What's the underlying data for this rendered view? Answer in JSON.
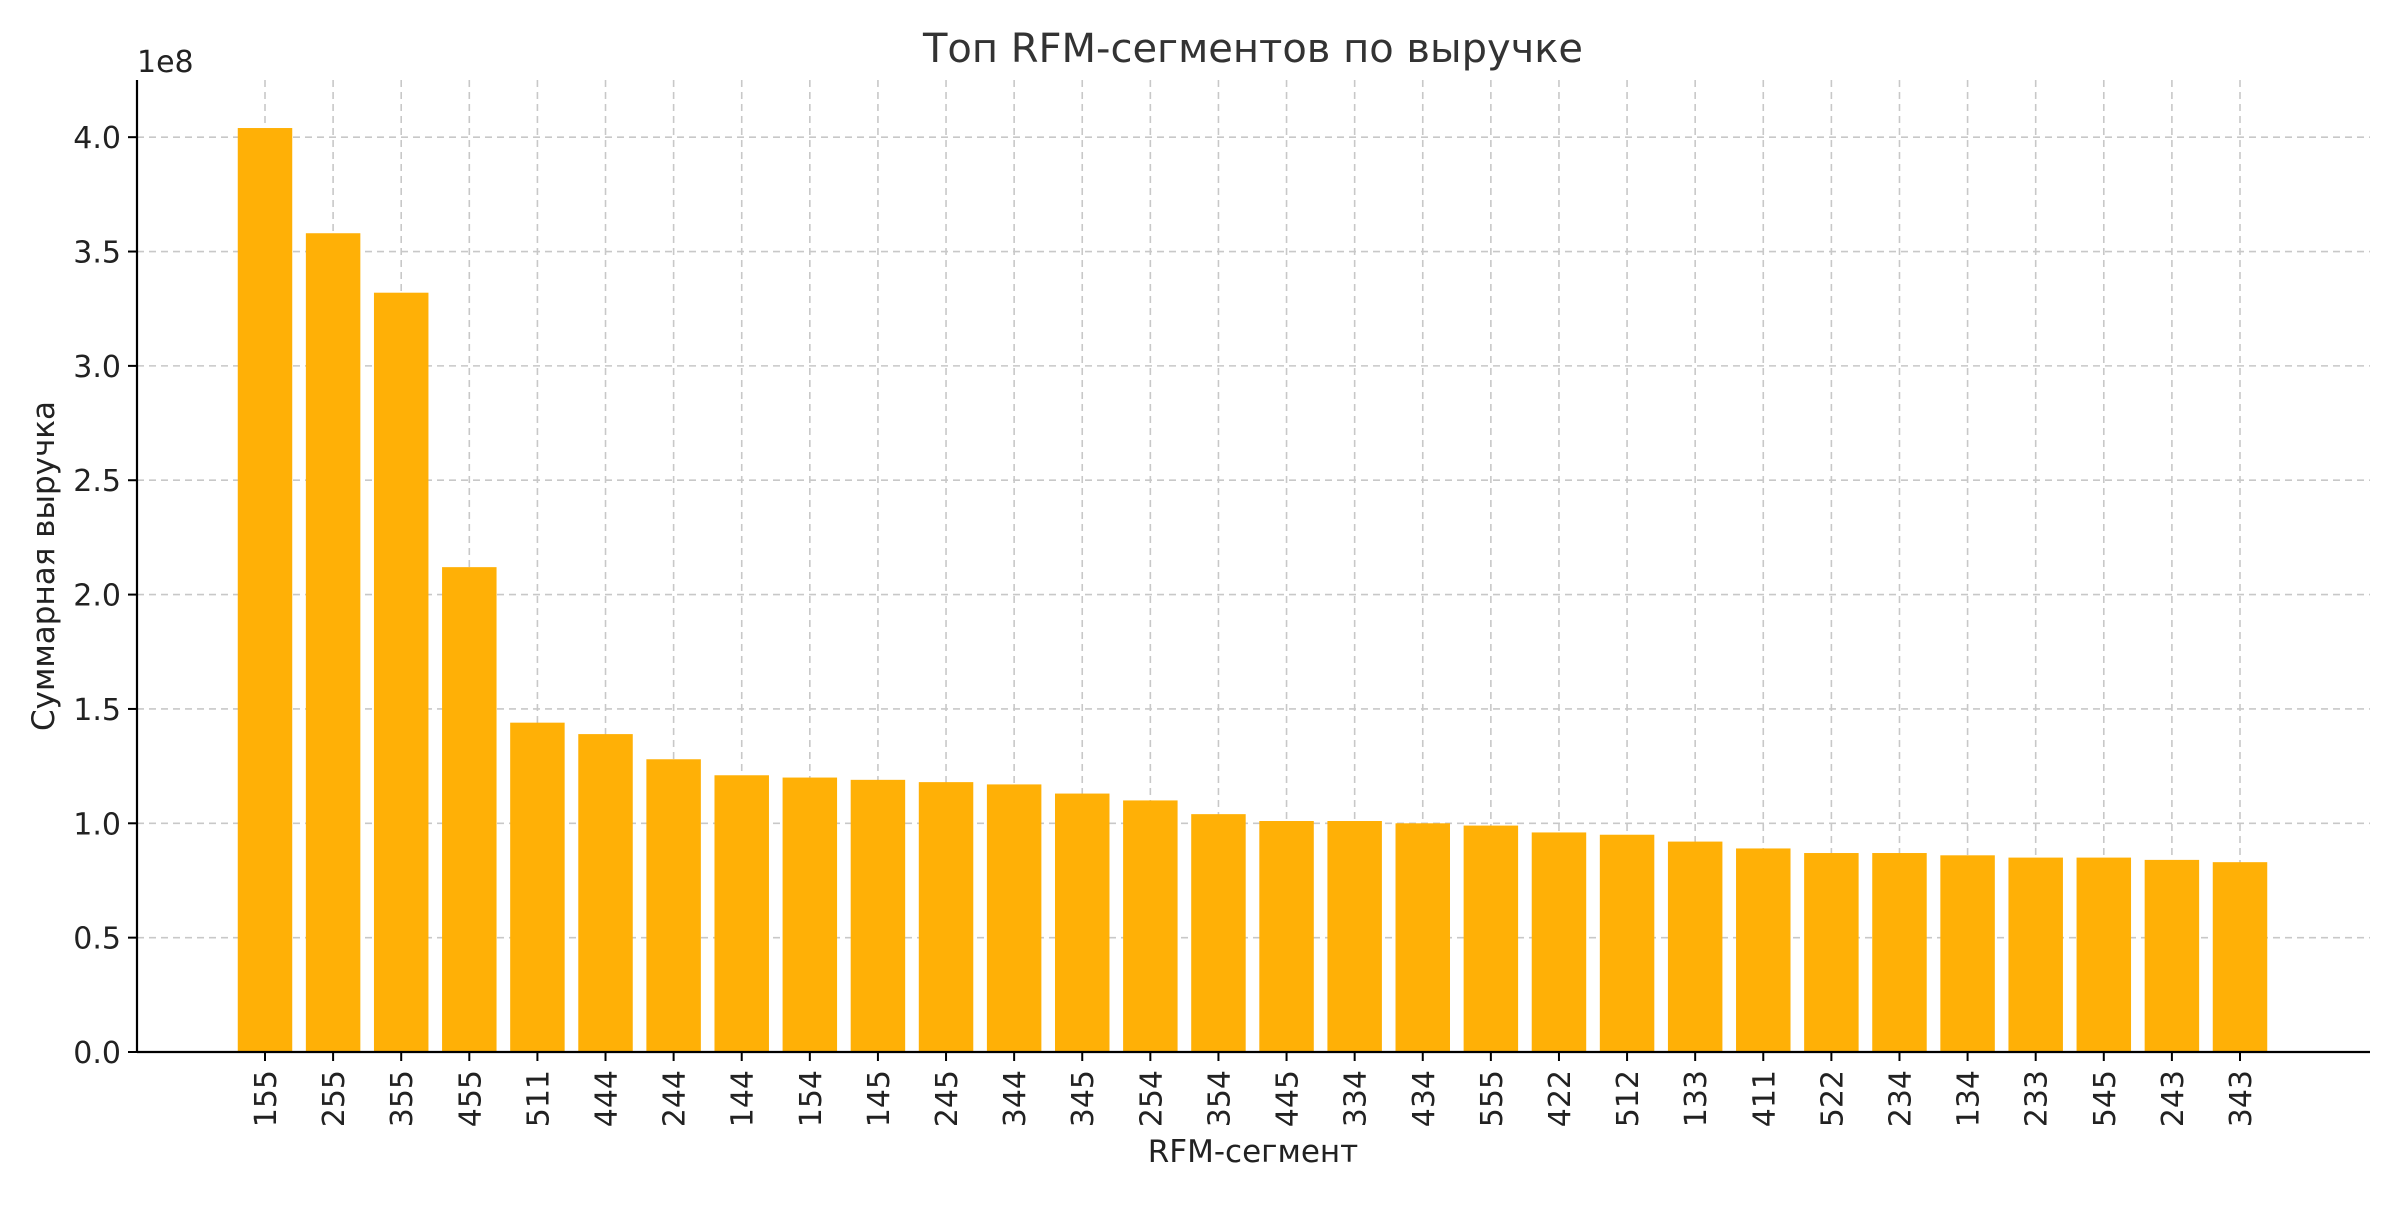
{
  "chart_data": {
    "type": "bar",
    "title": "Топ RFM-сегментов по выручке",
    "xlabel": "RFM-сегмент",
    "ylabel": "Суммарная выручка",
    "y_offset_label": "1e8",
    "y_scale_factor": 100000000,
    "ylim": [
      0,
      4.25
    ],
    "y_ticks": [
      0.0,
      0.5,
      1.0,
      1.5,
      2.0,
      2.5,
      3.0,
      3.5,
      4.0
    ],
    "y_tick_labels": [
      "0.0",
      "0.5",
      "1.0",
      "1.5",
      "2.0",
      "2.5",
      "3.0",
      "3.5",
      "4.0"
    ],
    "grid": true,
    "bar_color": "#FFB006",
    "categories": [
      "155",
      "255",
      "355",
      "455",
      "511",
      "444",
      "244",
      "144",
      "154",
      "145",
      "245",
      "344",
      "345",
      "254",
      "354",
      "445",
      "334",
      "434",
      "555",
      "422",
      "512",
      "133",
      "411",
      "522",
      "234",
      "134",
      "233",
      "545",
      "243",
      "343"
    ],
    "values": [
      4.04,
      3.58,
      3.32,
      2.12,
      1.44,
      1.39,
      1.28,
      1.21,
      1.2,
      1.19,
      1.18,
      1.17,
      1.13,
      1.1,
      1.04,
      1.01,
      1.01,
      1.0,
      0.99,
      0.96,
      0.95,
      0.92,
      0.89,
      0.87,
      0.87,
      0.86,
      0.85,
      0.85,
      0.84,
      0.83
    ]
  }
}
